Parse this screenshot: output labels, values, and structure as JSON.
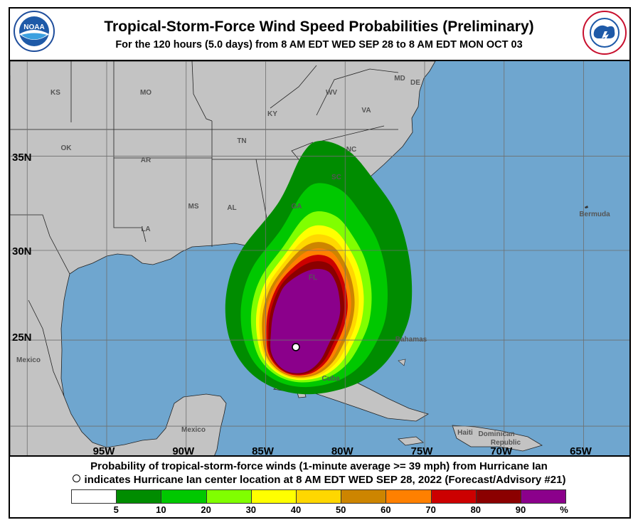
{
  "header": {
    "title": "Tropical-Storm-Force Wind Speed Probabilities (Preliminary)",
    "subtitle": "For the 120 hours (5.0 days) from 8 AM EDT WED SEP 28 to 8 AM EDT MON OCT 03"
  },
  "logos": {
    "left": "NOAA",
    "right": "NATIONAL WEATHER SERVICE"
  },
  "map": {
    "colors": {
      "land": "#c3c3c3",
      "ocean": "#6fa6cf",
      "grid": "#6e6e6e",
      "border": "#111111"
    },
    "longitude_labels": [
      "95W",
      "90W",
      "85W",
      "80W",
      "75W",
      "70W",
      "65W"
    ],
    "longitudes": [
      95,
      90,
      85,
      80,
      75,
      70,
      65
    ],
    "latitude_labels": [
      "35N",
      "30N",
      "25N"
    ],
    "latitudes": [
      35,
      30,
      25
    ],
    "state_labels": [
      "KS",
      "MO",
      "KY",
      "WV",
      "VA",
      "MD",
      "DE",
      "OK",
      "AR",
      "TN",
      "NC",
      "MS",
      "AL",
      "GA",
      "SC",
      "LA",
      "FL"
    ],
    "place_labels": [
      "Bermuda",
      "Bahamas",
      "Mexico",
      "Mexico",
      "Cuba",
      "Haiti",
      "Dominican",
      "Republic"
    ],
    "storm_center": {
      "name": "Hurricane Ian",
      "lat": 24.6,
      "lon": 83.1
    }
  },
  "caption": {
    "line1": "Probability of tropical-storm-force winds (1-minute average >= 39 mph) from Hurricane Ian",
    "line2": "indicates Hurricane Ian center location at 8 AM EDT WED SEP 28, 2022 (Forecast/Advisory #21)"
  },
  "legend": {
    "colors": [
      "#ffffff",
      "#008c00",
      "#00c800",
      "#80ff00",
      "#ffff00",
      "#ffd700",
      "#cd8500",
      "#ff8000",
      "#cc0000",
      "#8b0000",
      "#8b008b"
    ],
    "labels": [
      "5",
      "10",
      "20",
      "30",
      "40",
      "50",
      "60",
      "70",
      "80",
      "90",
      "%"
    ]
  }
}
